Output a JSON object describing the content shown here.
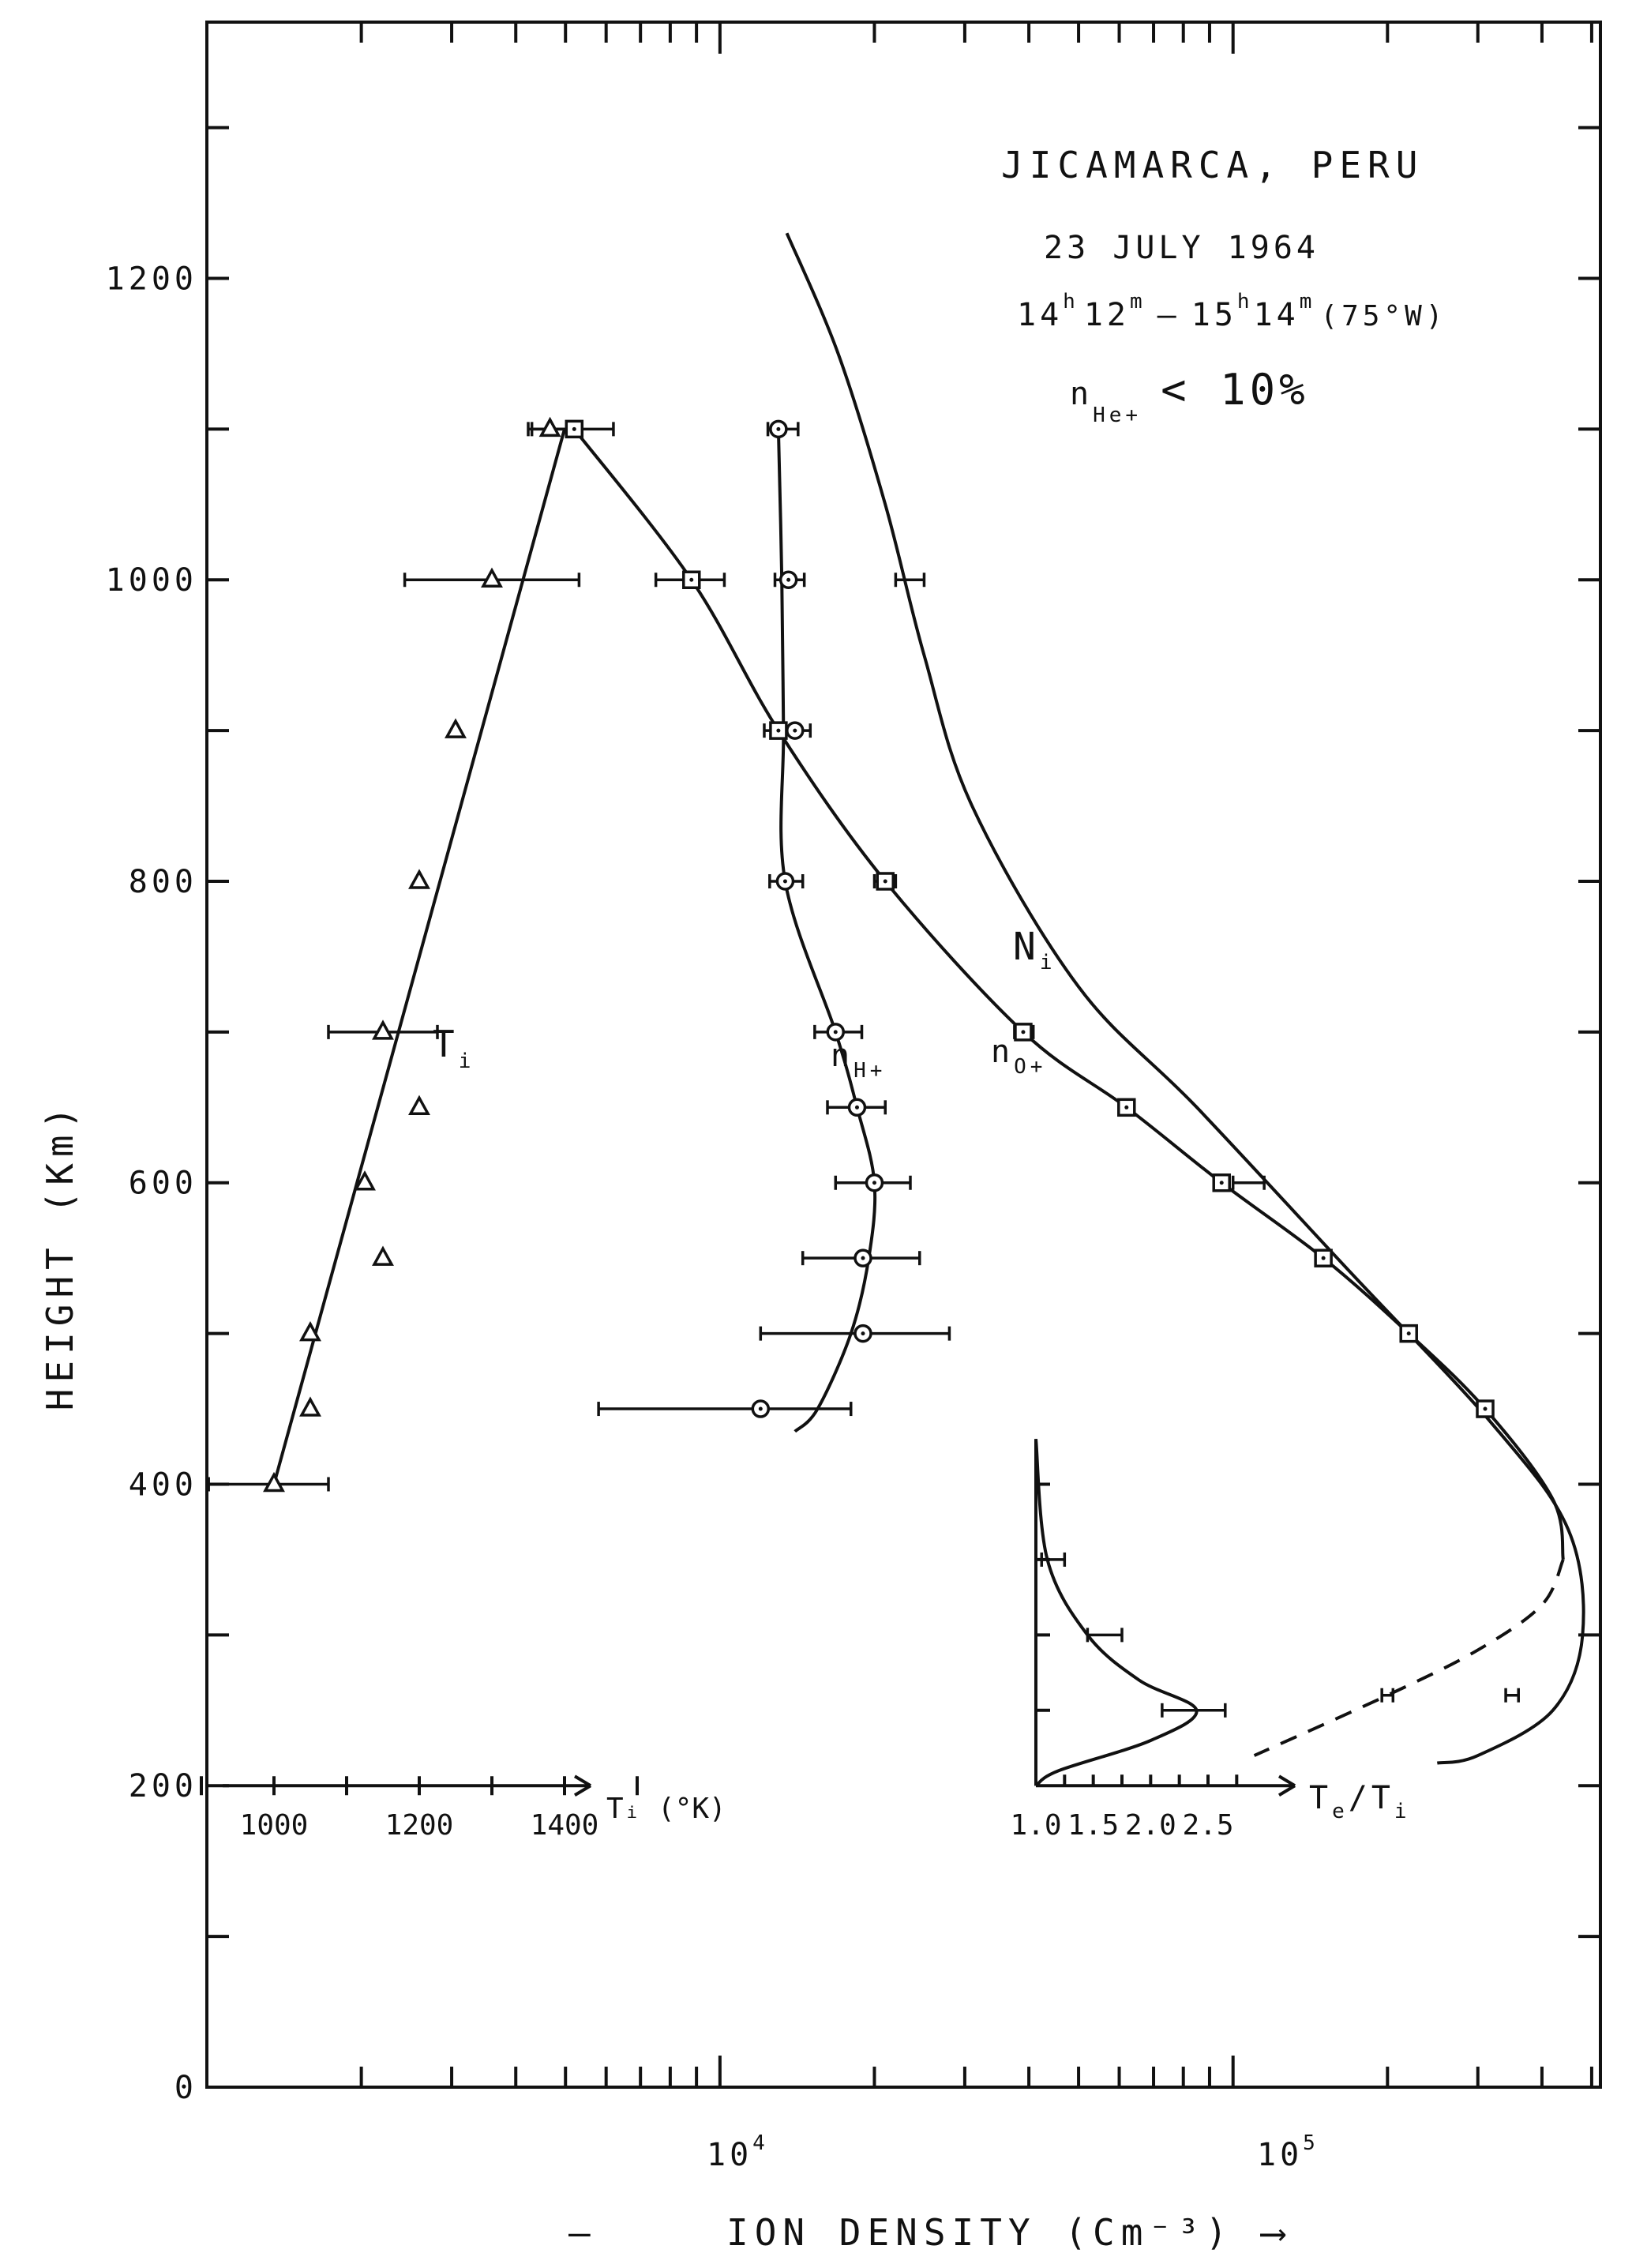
{
  "chart_data": {
    "type": "line",
    "title": "JICAMARCA, PERU",
    "date": "23 JULY 1964",
    "annotation": "n_He+ < 10%",
    "ylabel": "HEIGHT (Km)",
    "xlabel": "ION DENSITY (Cm⁻³)",
    "yaxis": {
      "ylim": [
        0,
        1370
      ],
      "ticks": [
        0,
        200,
        400,
        600,
        800,
        1000,
        1200
      ],
      "tick_labels": [
        "0",
        "200",
        "400",
        "600",
        "800",
        "1000",
        "1200"
      ]
    },
    "xaxis": {
      "scale": "log",
      "xlim": [
        1000,
        520000
      ],
      "tick_labels": [
        "10⁴",
        "10⁵"
      ],
      "tick_values": [
        10000,
        100000
      ]
    },
    "ti_axis": {
      "label": "Tᵢ (°K)",
      "tick_values": [
        1000,
        1200,
        1400
      ],
      "tick_labels": [
        "1000",
        "1200",
        "1400"
      ]
    },
    "series": [
      {
        "name": "Ni",
        "style": "solid",
        "points": [
          [
            13500,
            1230
          ],
          [
            17000,
            1150
          ],
          [
            21000,
            1050
          ],
          [
            25000,
            950
          ],
          [
            31000,
            850
          ],
          [
            50000,
            730
          ],
          [
            85000,
            650
          ],
          [
            170000,
            540
          ],
          [
            320000,
            440
          ],
          [
            450000,
            370
          ],
          [
            480000,
            300
          ],
          [
            420000,
            250
          ],
          [
            300000,
            220
          ],
          [
            250000,
            215
          ]
        ]
      },
      {
        "name": "nO+",
        "style": "solid",
        "points": [
          [
            5200,
            1100
          ],
          [
            8800,
            1000
          ],
          [
            13000,
            900
          ],
          [
            21000,
            800
          ],
          [
            39000,
            700
          ],
          [
            62000,
            650
          ],
          [
            95000,
            600
          ],
          [
            150000,
            550
          ],
          [
            220000,
            500
          ],
          [
            310000,
            450
          ],
          [
            420000,
            390
          ],
          [
            440000,
            350
          ]
        ]
      },
      {
        "name": "nO+ extrapolated",
        "style": "dashed",
        "points": [
          [
            440000,
            350
          ],
          [
            400000,
            320
          ],
          [
            300000,
            290
          ],
          [
            200000,
            260
          ],
          [
            110000,
            220
          ]
        ]
      },
      {
        "name": "nH+",
        "style": "solid",
        "points": [
          [
            13000,
            1100
          ],
          [
            13200,
            1000
          ],
          [
            13300,
            900
          ],
          [
            13400,
            800
          ],
          [
            16800,
            700
          ],
          [
            18500,
            650
          ],
          [
            20000,
            600
          ],
          [
            19500,
            550
          ],
          [
            18000,
            500
          ],
          [
            15500,
            450
          ],
          [
            14000,
            435
          ]
        ]
      },
      {
        "name": "Ti",
        "style": "solid",
        "points": [
          [
            1000,
            400
          ],
          [
            1400,
            1100
          ]
        ]
      }
    ],
    "markers": {
      "o_plus": [
        {
          "x": 5200,
          "y": 1100,
          "lo": 4300,
          "hi": 6200
        },
        {
          "x": 8800,
          "y": 1000,
          "lo": 7500,
          "hi": 10200
        },
        {
          "x": 13000,
          "y": 900,
          "lo": 12200,
          "hi": 13900
        },
        {
          "x": 21000,
          "y": 800,
          "lo": 20000,
          "hi": 22000
        },
        {
          "x": 39000,
          "y": 700,
          "lo": 37500,
          "hi": 40800
        },
        {
          "x": 62000,
          "y": 650,
          "lo": 60000,
          "hi": 64000
        },
        {
          "x": 95000,
          "y": 600,
          "lo": 92000,
          "hi": 98000
        },
        {
          "x": 150000,
          "y": 550
        },
        {
          "x": 220000,
          "y": 500
        },
        {
          "x": 310000,
          "y": 450
        },
        {
          "x": 200000,
          "y": 260,
          "lo": 195000,
          "hi": 205000,
          "marker": "none"
        },
        {
          "x": 350000,
          "y": 260,
          "lo": 340000,
          "hi": 360000,
          "marker": "none"
        }
      ],
      "h_plus": [
        {
          "x": 13000,
          "y": 1100,
          "lo": 12400,
          "hi": 14200
        },
        {
          "x": 13600,
          "y": 1000,
          "lo": 12800,
          "hi": 14600
        },
        {
          "x": 14000,
          "y": 900,
          "lo": 12800,
          "hi": 15000
        },
        {
          "x": 13400,
          "y": 800,
          "lo": 12500,
          "hi": 14500
        },
        {
          "x": 16800,
          "y": 700,
          "lo": 15300,
          "hi": 18900
        },
        {
          "x": 18500,
          "y": 650,
          "lo": 16200,
          "hi": 21000
        },
        {
          "x": 20000,
          "y": 600,
          "lo": 16800,
          "hi": 23500
        },
        {
          "x": 19000,
          "y": 550,
          "lo": 14500,
          "hi": 24500
        },
        {
          "x": 19000,
          "y": 500,
          "lo": 12000,
          "hi": 28000
        },
        {
          "x": 12000,
          "y": 450,
          "lo": 5800,
          "hi": 18000
        }
      ],
      "ni_err": [
        {
          "x": 0,
          "y": 1000,
          "lo": 22000,
          "hi": 25000,
          "marker": "none"
        },
        {
          "x": 0,
          "y": 600,
          "lo": 100000,
          "hi": 115000,
          "marker": "none"
        }
      ],
      "ti": [
        {
          "t": 1000,
          "y": 400,
          "lo": 910,
          "hi": 1075
        },
        {
          "t": 1050,
          "y": 450
        },
        {
          "t": 1050,
          "y": 500
        },
        {
          "t": 1150,
          "y": 550
        },
        {
          "t": 1125,
          "y": 600
        },
        {
          "t": 1200,
          "y": 650
        },
        {
          "t": 1150,
          "y": 700,
          "lo": 1075,
          "hi": 1225
        },
        {
          "t": 1200,
          "y": 800
        },
        {
          "t": 1250,
          "y": 900
        },
        {
          "t": 1300,
          "y": 1000,
          "lo": 1180,
          "hi": 1420
        },
        {
          "t": 1380,
          "y": 1100,
          "lo": 1350,
          "hi": 1410
        }
      ]
    },
    "inset": {
      "xlabel": "Tₑ/Tᵢ",
      "ratio_ticks": [
        1.0,
        1.5,
        2.0,
        2.5
      ],
      "ratio_tick_labels": [
        "1.0",
        "1.5",
        "2.0",
        "2.5"
      ],
      "ylim": [
        200,
        430
      ],
      "curve": [
        [
          1.0,
          430
        ],
        [
          1.1,
          350
        ],
        [
          1.45,
          300
        ],
        [
          1.9,
          270
        ],
        [
          2.4,
          250
        ],
        [
          2.0,
          230
        ],
        [
          1.2,
          210
        ],
        [
          1.0,
          200
        ]
      ],
      "errors": [
        {
          "r": 1.15,
          "y": 350,
          "lo": 1.05,
          "hi": 1.25
        },
        {
          "r": 1.6,
          "y": 300,
          "lo": 1.45,
          "hi": 1.75
        },
        {
          "r": 2.4,
          "y": 250,
          "lo": 2.1,
          "hi": 2.65
        }
      ]
    }
  },
  "labels": {
    "title": "JICAMARCA, PERU",
    "date": "23 JULY 1964",
    "time_h1": "14",
    "time_sup_h1": "h",
    "time_m1": "12",
    "time_sup_m1": "m",
    "time_dash": "–",
    "time_h2": "15",
    "time_sup_h2": "h",
    "time_m2": "14",
    "time_sup_m2": "m",
    "time_zone": "(75°W)",
    "he_n": "n",
    "he_sub": "He+",
    "he_rest": "< 10%",
    "ni_main": "N",
    "ni_sub": "i",
    "o_main": "n",
    "o_sub": "O+",
    "h_main": "n",
    "h_sub": "H+",
    "ti_main": "T",
    "ti_sub": "i",
    "ylabel": "HEIGHT (Km)",
    "xlabel": "ION DENSITY (Cm⁻³) ⟶",
    "xlabel_dash": "—",
    "xtick_1e4_base": "10",
    "xtick_1e4_exp": "4",
    "xtick_1e5_base": "10",
    "xtick_1e5_exp": "5",
    "ti_axis_label": "Tᵢ (°K)",
    "inset_xlabel_main": "T",
    "inset_xlabel_sub_e": "e",
    "inset_xlabel_slash": "/T",
    "inset_xlabel_sub_i": "i"
  }
}
